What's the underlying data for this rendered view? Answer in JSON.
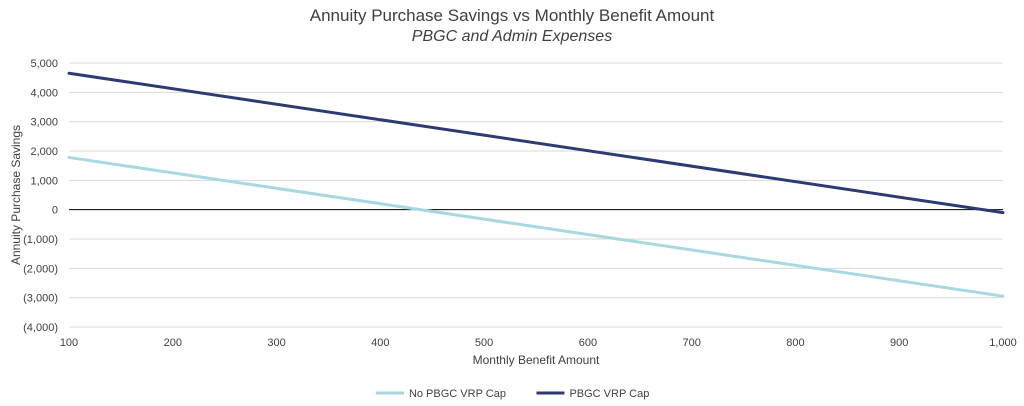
{
  "chart_data": {
    "type": "line",
    "title": "Annuity Purchase Savings vs Monthly Benefit Amount",
    "subtitle": "PBGC and Admin Expenses",
    "xlabel": "Monthly Benefit Amount",
    "ylabel": "Annuity Purchase Savings",
    "xlim": [
      100,
      1000
    ],
    "ylim": [
      -4000,
      5000
    ],
    "x_ticks": [
      100,
      200,
      300,
      400,
      500,
      600,
      700,
      800,
      900,
      1000
    ],
    "x_tick_labels": [
      "100",
      "200",
      "300",
      "400",
      "500",
      "600",
      "700",
      "800",
      "900",
      "1,000"
    ],
    "y_ticks": [
      5000,
      4000,
      3000,
      2000,
      1000,
      0,
      -1000,
      -2000,
      -3000,
      -4000
    ],
    "y_tick_labels": [
      "5,000",
      "4,000",
      "3,000",
      "2,000",
      "1,000",
      "0",
      "(1,000)",
      "(2,000)",
      "(3,000)",
      "(4,000)"
    ],
    "grid": true,
    "legend_position": "bottom",
    "series": [
      {
        "name": "No PBGC VRP Cap",
        "color": "#a8d8e0",
        "x": [
          100,
          1000
        ],
        "values": [
          1780,
          -2950
        ]
      },
      {
        "name": "PBGC VRP Cap",
        "color": "#2e3b73",
        "x": [
          100,
          1000
        ],
        "values": [
          4650,
          -100
        ]
      }
    ],
    "zero_line_color": "#000000"
  }
}
